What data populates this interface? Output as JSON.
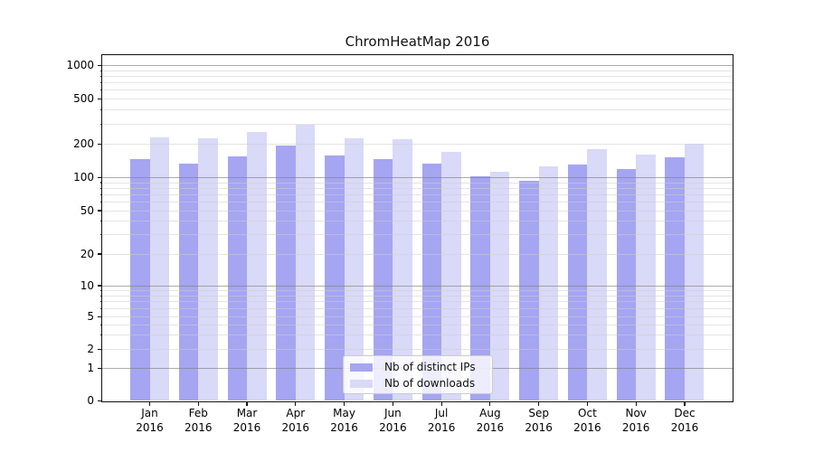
{
  "chart_data": {
    "type": "bar",
    "title": "ChromHeatMap 2016",
    "xlabel": "",
    "ylabel": "",
    "categories": [
      "Jan",
      "Feb",
      "Mar",
      "Apr",
      "May",
      "Jun",
      "Jul",
      "Aug",
      "Sep",
      "Oct",
      "Nov",
      "Dec"
    ],
    "year_label": "2016",
    "series": [
      {
        "name": "Nb of distinct IPs",
        "color": "#a5a5f2",
        "values": [
          146,
          133,
          156,
          195,
          158,
          148,
          133,
          102,
          93,
          131,
          120,
          153
        ]
      },
      {
        "name": "Nb of downloads",
        "color": "#d9d9f8",
        "values": [
          230,
          228,
          258,
          295,
          226,
          223,
          171,
          112,
          127,
          180,
          161,
          202
        ]
      }
    ],
    "yscale": "symlog",
    "yticks": [
      0,
      1,
      2,
      5,
      10,
      20,
      50,
      100,
      200,
      500,
      1000
    ],
    "ylim": [
      0,
      1200
    ],
    "grid": true,
    "legend_position": "lower center"
  }
}
